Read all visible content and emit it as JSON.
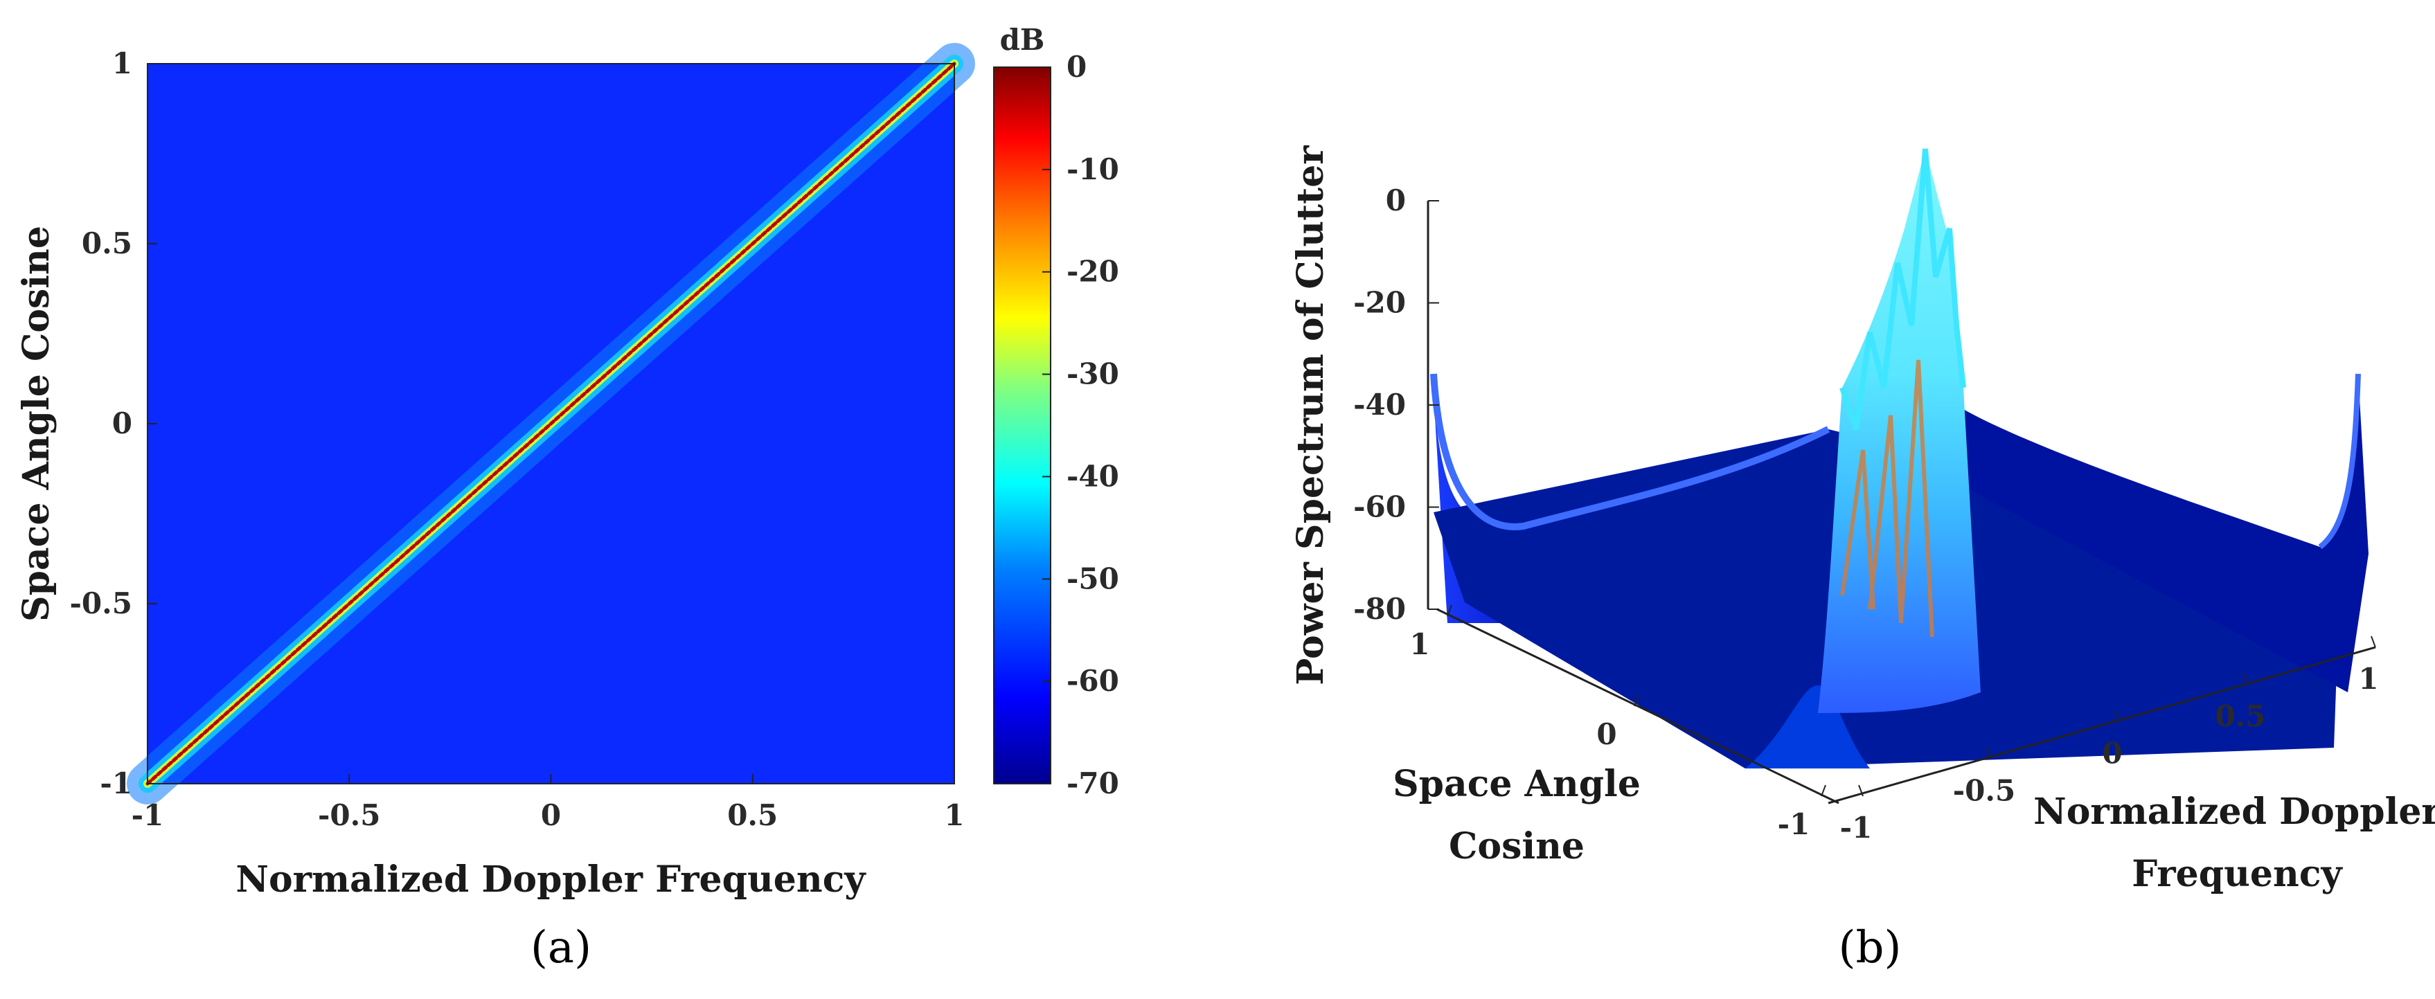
{
  "chart_data": [
    {
      "type": "heatmap",
      "panel_label": "(a)",
      "xlabel": "Normalized Doppler Frequency",
      "ylabel": "Space Angle Cosine",
      "xlim": [
        -1,
        1
      ],
      "ylim": [
        -1,
        1
      ],
      "x_ticks": [
        -1,
        -0.5,
        0,
        0.5,
        1
      ],
      "y_ticks": [
        -1,
        -0.5,
        0,
        0.5,
        1
      ],
      "x_tick_labels": [
        "-1",
        "-0.5",
        "0",
        "0.5",
        "1"
      ],
      "y_tick_labels": [
        "-1",
        "-0.5",
        "0",
        "0.5",
        "1"
      ],
      "colorbar": {
        "title": "dB",
        "range": [
          -70,
          0
        ],
        "ticks": [
          0,
          -10,
          -20,
          -30,
          -40,
          -50,
          -60,
          -70
        ],
        "tick_labels": [
          "0",
          "-10",
          "-20",
          "-30",
          "-40",
          "-50",
          "-60",
          "-70"
        ],
        "colormap": [
          "#00008f",
          "#0000ff",
          "#0080ff",
          "#00ffff",
          "#80ff80",
          "#ffff00",
          "#ff8000",
          "#ff0000",
          "#800000"
        ]
      },
      "background_level_db": -62,
      "ridge": {
        "description_relation": "y = x",
        "peak_db": 0,
        "from": [
          -1,
          -1
        ],
        "to": [
          1,
          1
        ]
      }
    },
    {
      "type": "surface",
      "panel_label": "(b)",
      "zlabel": "Power Spectrum of Clutter",
      "xlabel": "Normalized Doppler Frequency",
      "ylabel": "Space Angle Cosine",
      "z_ticks": [
        0,
        -20,
        -40,
        -60,
        -80
      ],
      "z_tick_labels": [
        "0",
        "-20",
        "-40",
        "-60",
        "-80"
      ],
      "x_ticks": [
        -1,
        -0.5,
        0,
        0.5,
        1
      ],
      "x_tick_labels": [
        "-1",
        "-0.5",
        "0",
        "0.5",
        "1"
      ],
      "y_ticks": [
        -1,
        0,
        1
      ],
      "y_tick_labels": [
        "-1",
        "0",
        "1"
      ],
      "zlim": [
        -80,
        0
      ],
      "floor_level_db": -70,
      "ridge": {
        "relation": "y = x",
        "peak_db": 0
      }
    }
  ]
}
